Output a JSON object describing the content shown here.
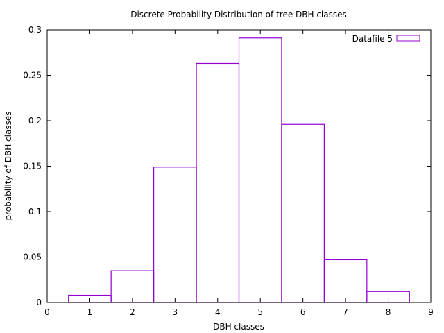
{
  "chart_data": {
    "type": "bar",
    "title": "Discrete Probability Distribution of tree DBH classes",
    "xlabel": "DBH classes",
    "ylabel": "probability of DBH classes",
    "xlim": [
      0,
      9
    ],
    "ylim": [
      0,
      0.3
    ],
    "x_ticks": [
      "0",
      "1",
      "2",
      "3",
      "4",
      "5",
      "6",
      "7",
      "8",
      "9"
    ],
    "y_ticks": [
      "0",
      "0.05",
      "0.1",
      "0.15",
      "0.2",
      "0.25",
      "0.3"
    ],
    "grid": false,
    "legend_position": "top-right",
    "series": [
      {
        "name": "Datafile 5",
        "color": "#9400d3",
        "style": "boxes",
        "x": [
          1,
          2,
          3,
          4,
          5,
          6,
          7,
          8
        ],
        "values": [
          0.008,
          0.035,
          0.149,
          0.263,
          0.291,
          0.196,
          0.047,
          0.012
        ]
      }
    ]
  }
}
